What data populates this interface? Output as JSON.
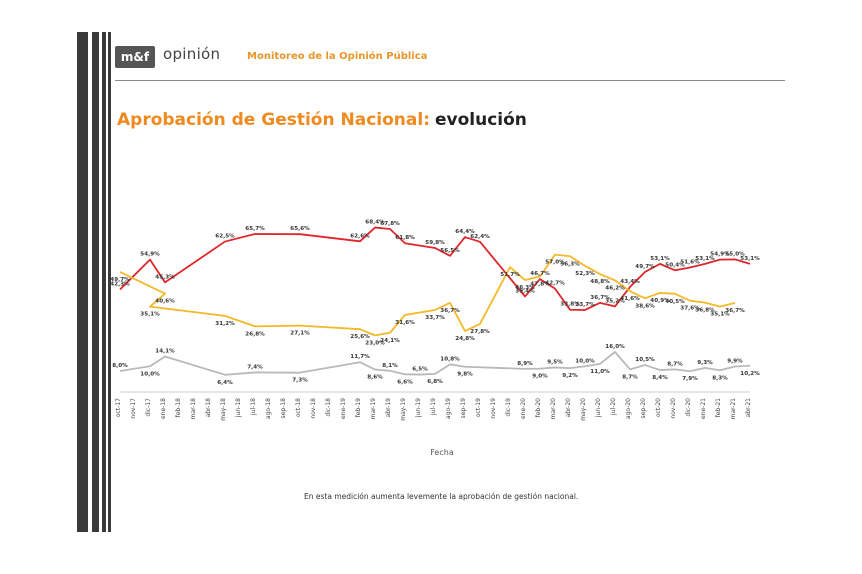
{
  "header": {
    "logo": "m&f",
    "brand": "opinión",
    "subtitle": "Monitoreo de la Opinión Pública"
  },
  "title": {
    "highlight": "Aprobación de Gestión Nacional:",
    "rest": "evolución"
  },
  "note": "En esta medición aumenta levemente la aprobación de gestión nacional.",
  "colors": {
    "red": "#e0262a",
    "yellow": "#f3b928",
    "gray": "#b9b9b9"
  },
  "chart_data": {
    "type": "line",
    "title": "Aprobación de Gestión Nacional: evolución",
    "xlabel": "Fecha",
    "ylabel": "",
    "ylim": [
      0,
      80
    ],
    "grid": false,
    "legend": "none",
    "categories": [
      "oct-17",
      "nov-17",
      "dic-17",
      "ene-18",
      "feb-18",
      "mar-18",
      "abr-18",
      "may-18",
      "jun-18",
      "jul-18",
      "ago-18",
      "sep-18",
      "oct-18",
      "nov-18",
      "dic-18",
      "ene-19",
      "feb-19",
      "mar-19",
      "abr-19",
      "may-19",
      "jun-19",
      "jul-19",
      "ago-19",
      "sep-19",
      "oct-19",
      "nov-19",
      "dic-19",
      "ene-20",
      "feb-20",
      "mar-20",
      "abr-20",
      "may-20",
      "jun-20",
      "jul-20",
      "ago-20",
      "sep-20",
      "oct-20",
      "nov-20",
      "dic-20",
      "ene-21",
      "feb-21",
      "mar-21",
      "abr-21"
    ],
    "series": [
      {
        "color": "#e0262a",
        "points": [
          {
            "x": "oct-17",
            "y": 42.3
          },
          {
            "x": "dic-17",
            "y": 54.9
          },
          {
            "x": "ene-18",
            "y": 45.3
          },
          {
            "x": "may-18",
            "y": 62.5
          },
          {
            "x": "jul-18",
            "y": 65.7
          },
          {
            "x": "oct-18",
            "y": 65.6
          },
          {
            "x": "feb-19",
            "y": 62.6
          },
          {
            "x": "mar-19",
            "y": 68.4
          },
          {
            "x": "abr-19",
            "y": 67.8
          },
          {
            "x": "may-19",
            "y": 61.8
          },
          {
            "x": "jul-19",
            "y": 59.8
          },
          {
            "x": "ago-19",
            "y": 56.5
          },
          {
            "x": "sep-19",
            "y": 64.4
          },
          {
            "x": "oct-19",
            "y": 62.4
          },
          {
            "x": "ene-20",
            "y": 39.4
          },
          {
            "x": "feb-20",
            "y": 46.7
          },
          {
            "x": "mar-20",
            "y": 42.7
          },
          {
            "x": "abr-20",
            "y": 33.8
          },
          {
            "x": "may-20",
            "y": 33.7
          },
          {
            "x": "jun-20",
            "y": 36.7
          },
          {
            "x": "jul-20",
            "y": 35.2
          },
          {
            "x": "ago-20",
            "y": 43.4
          },
          {
            "x": "sep-20",
            "y": 49.7
          },
          {
            "x": "oct-20",
            "y": 53.1
          },
          {
            "x": "nov-20",
            "y": 50.4
          },
          {
            "x": "dic-20",
            "y": 51.6
          },
          {
            "x": "ene-21",
            "y": 53.1
          },
          {
            "x": "feb-21",
            "y": 54.9
          },
          {
            "x": "mar-21",
            "y": 55.0
          },
          {
            "x": "abr-21",
            "y": 53.1
          }
        ],
        "labels": [
          "42,3%",
          "54,9%",
          "45,3%",
          "62,5%",
          "65,7%",
          "65,6%",
          "62,6%",
          "68,4%",
          "67,8%",
          "61,8%",
          "59,8%",
          "56,5%",
          "64,4%",
          "62,4%",
          "39,4%",
          "46,7%",
          "42,7%",
          "33,8%",
          "33,7%",
          "36,7%",
          "35,2%",
          "43,4%",
          "49,7%",
          "53,1%",
          "50,4%",
          "51,6%",
          "53,1%",
          "54,9%",
          "55,0%",
          "53,1%"
        ]
      },
      {
        "color": "#f3b928",
        "points": [
          {
            "x": "oct-17",
            "y": 49.7
          },
          {
            "x": "ene-18",
            "y": 40.6
          },
          {
            "x": "dic-17",
            "y": 35.1
          },
          {
            "x": "may-18",
            "y": 31.2
          },
          {
            "x": "jul-18",
            "y": 26.8
          },
          {
            "x": "oct-18",
            "y": 27.1
          },
          {
            "x": "feb-19",
            "y": 25.6
          },
          {
            "x": "mar-19",
            "y": 23.0
          },
          {
            "x": "abr-19",
            "y": 24.1
          },
          {
            "x": "may-19",
            "y": 31.6
          },
          {
            "x": "jul-19",
            "y": 33.7
          },
          {
            "x": "ago-19",
            "y": 36.7
          },
          {
            "x": "sep-19",
            "y": 24.8
          },
          {
            "x": "oct-19",
            "y": 27.8
          },
          {
            "x": "dic-19",
            "y": 51.7
          },
          {
            "x": "ene-20",
            "y": 46.3
          },
          {
            "x": "feb-20",
            "y": 47.8
          },
          {
            "x": "mar-20",
            "y": 57.0
          },
          {
            "x": "abr-20",
            "y": 56.3
          },
          {
            "x": "may-20",
            "y": 52.3
          },
          {
            "x": "jun-20",
            "y": 48.8
          },
          {
            "x": "jul-20",
            "y": 46.2
          },
          {
            "x": "ago-20",
            "y": 41.6
          },
          {
            "x": "sep-20",
            "y": 38.6
          },
          {
            "x": "oct-20",
            "y": 40.9
          },
          {
            "x": "nov-20",
            "y": 40.5
          },
          {
            "x": "dic-20",
            "y": 37.6
          },
          {
            "x": "ene-21",
            "y": 36.8
          },
          {
            "x": "feb-21",
            "y": 35.1
          },
          {
            "x": "mar-21",
            "y": 36.7
          }
        ],
        "labels": [
          "49,7%",
          "40,6%",
          "35,1%",
          "31,2%",
          "26,8%",
          "27,1%",
          "25,6%",
          "23,0%",
          "24,1%",
          "31,6%",
          "33,7%",
          "36,7%",
          "24,8%",
          "27,8%",
          "51,7%",
          "46,3%",
          "47,8%",
          "57,0%",
          "56,3%",
          "52,3%",
          "48,8%",
          "46,2%",
          "41,6%",
          "38,6%",
          "40,9%",
          "40,5%",
          "37,6%",
          "36,8%",
          "35,1%",
          "36,7%"
        ]
      },
      {
        "color": "#b9b9b9",
        "points": [
          {
            "x": "oct-17",
            "y": 8.0
          },
          {
            "x": "dic-17",
            "y": 10.0
          },
          {
            "x": "ene-18",
            "y": 14.1
          },
          {
            "x": "may-18",
            "y": 6.4
          },
          {
            "x": "jul-18",
            "y": 7.4
          },
          {
            "x": "oct-18",
            "y": 7.3
          },
          {
            "x": "feb-19",
            "y": 11.7
          },
          {
            "x": "mar-19",
            "y": 8.6
          },
          {
            "x": "abr-19",
            "y": 8.1
          },
          {
            "x": "may-19",
            "y": 6.6
          },
          {
            "x": "jun-19",
            "y": 6.5
          },
          {
            "x": "jul-19",
            "y": 6.8
          },
          {
            "x": "ago-19",
            "y": 10.8
          },
          {
            "x": "sep-19",
            "y": 9.8
          },
          {
            "x": "ene-20",
            "y": 8.9
          },
          {
            "x": "feb-20",
            "y": 9.0
          },
          {
            "x": "mar-20",
            "y": 9.5
          },
          {
            "x": "abr-20",
            "y": 9.2
          },
          {
            "x": "may-20",
            "y": 10.0
          },
          {
            "x": "jun-20",
            "y": 11.0
          },
          {
            "x": "jul-20",
            "y": 16.0
          },
          {
            "x": "ago-20",
            "y": 8.7
          },
          {
            "x": "sep-20",
            "y": 10.5
          },
          {
            "x": "oct-20",
            "y": 8.4
          },
          {
            "x": "nov-20",
            "y": 8.7
          },
          {
            "x": "dic-20",
            "y": 7.9
          },
          {
            "x": "ene-21",
            "y": 9.3
          },
          {
            "x": "feb-21",
            "y": 8.3
          },
          {
            "x": "mar-21",
            "y": 9.9
          },
          {
            "x": "abr-21",
            "y": 10.2
          }
        ],
        "labels": [
          "8,0%",
          "10,0%",
          "14,1%",
          "6,4%",
          "7,4%",
          "7,3%",
          "11,7%",
          "8,6%",
          "8,1%",
          "6,6%",
          "6,5%",
          "6,8%",
          "10,8%",
          "9,8%",
          "8,9%",
          "9,0%",
          "9,5%",
          "9,2%",
          "10,0%",
          "11,0%",
          "16,0%",
          "8,7%",
          "10,5%",
          "8,4%",
          "8,7%",
          "7,9%",
          "9,3%",
          "8,3%",
          "9,9%",
          "10,2%"
        ]
      }
    ]
  }
}
